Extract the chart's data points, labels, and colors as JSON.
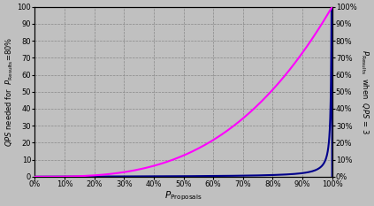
{
  "x_ticks": [
    0,
    0.1,
    0.2,
    0.3,
    0.4,
    0.5,
    0.6,
    0.7,
    0.8,
    0.9,
    1.0
  ],
  "y_left_ticks": [
    0,
    10,
    20,
    30,
    40,
    50,
    60,
    70,
    80,
    90,
    100
  ],
  "y_right_ticks": [
    0,
    10,
    20,
    30,
    40,
    50,
    60,
    70,
    80,
    90,
    100
  ],
  "ylim_left": [
    0,
    100
  ],
  "ylim_right": [
    0,
    100
  ],
  "xlim": [
    0.0,
    1.0
  ],
  "blue_color": "#00008B",
  "pink_color": "#FF00FF",
  "bg_color": "#C0C0C0",
  "grid_color": "#888888",
  "grid_style": "--",
  "ylabel_left": "$\\it{QPS}$ needed for  $\\it{P}_{\\rm{Results}}$=80%",
  "ylabel_right": "$\\it{P}_{\\rm{Results}}$  when  $\\it{QPS}$ = 3",
  "xlabel": "$\\it{P}_{\\rm{Proposals}}$"
}
